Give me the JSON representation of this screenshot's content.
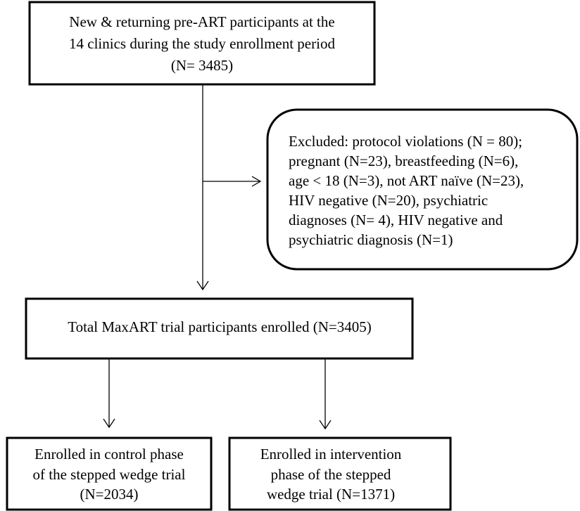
{
  "nodes": [
    {
      "lines": [
        "New & returning pre-ART participants at the",
        "14 clinics during the study enrollment period",
        "(N= 3485)"
      ]
    },
    {
      "lines": [
        "Excluded: protocol violations (N = 80);",
        "pregnant (N=23), breastfeeding (N=6),",
        "age < 18 (N=3), not ART naïve (N=23),",
        "HIV negative (N=20), psychiatric",
        "diagnoses (N= 4), HIV negative and",
        "psychiatric diagnosis (N=1)"
      ]
    },
    {
      "lines": [
        "Total MaxART trial participants enrolled (N=3405)"
      ]
    },
    {
      "lines": [
        "Enrolled in control phase",
        "of the stepped wedge trial",
        "(N=2034)"
      ]
    },
    {
      "lines": [
        "Enrolled in intervention",
        "phase of the stepped",
        "wedge trial (N=1371)"
      ]
    }
  ]
}
